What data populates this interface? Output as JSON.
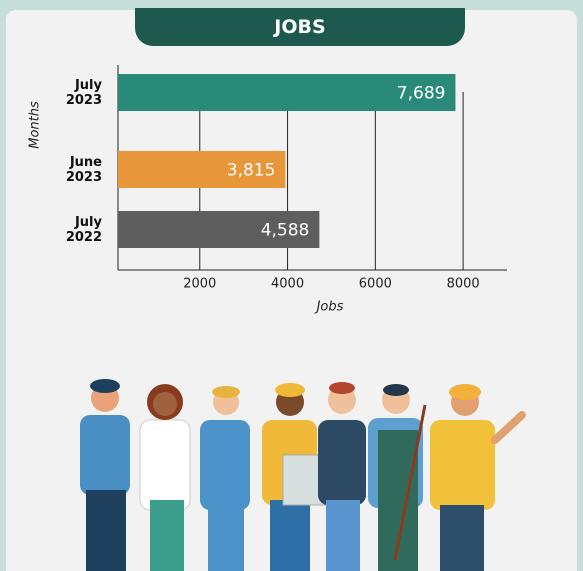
{
  "chart_data": {
    "type": "barh",
    "title": "JOBS",
    "categories": [
      "July 2023",
      "June 2023",
      "July 2022"
    ],
    "values": [
      7689,
      3815,
      4588
    ],
    "value_labels": [
      "7,689",
      "3,815",
      "4,588"
    ],
    "colors": [
      "#2a8a7a",
      "#e8963a",
      "#5e5e5e"
    ],
    "xlim": [
      0,
      9000
    ],
    "xticks": [
      2000,
      4000,
      6000,
      8000
    ],
    "x_label": "Jobs",
    "y_label": "Months",
    "grid": true
  }
}
